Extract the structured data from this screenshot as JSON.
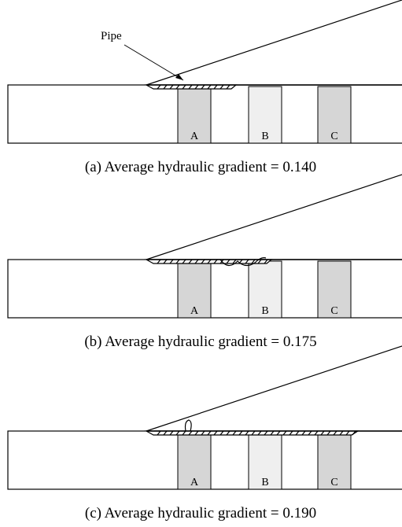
{
  "annotation": "Pipe",
  "panels": [
    {
      "caption": "(a) Average hydraulic gradient = 0.140",
      "blocks": [
        "A",
        "B",
        "C"
      ]
    },
    {
      "caption": "(b) Average hydraulic gradient = 0.175",
      "blocks": [
        "A",
        "B",
        "C"
      ]
    },
    {
      "caption": "(c) Average hydraulic gradient = 0.190",
      "blocks": [
        "A",
        "B",
        "C"
      ]
    }
  ]
}
